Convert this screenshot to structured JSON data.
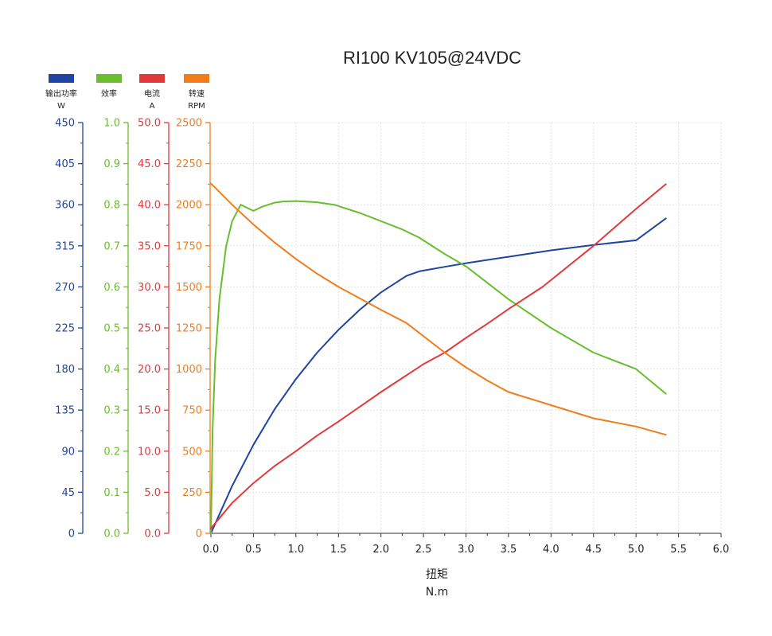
{
  "chart_data": {
    "type": "line",
    "title": "RI100 KV105@24VDC",
    "xlabel": "扭矩",
    "xunit": "N.m",
    "xlim": [
      0,
      6.0
    ],
    "xticks": [
      "0.0",
      "0.5",
      "1.0",
      "1.5",
      "2.0",
      "2.5",
      "3.0",
      "3.5",
      "4.0",
      "4.5",
      "5.0",
      "5.5",
      "6.0"
    ],
    "grid": true,
    "legend_position": "top-left",
    "series": [
      {
        "name": "输出功率",
        "unit": "W",
        "color": "#1f45a0",
        "ylim": [
          0,
          450
        ],
        "yticks": [
          "0",
          "45",
          "90",
          "135",
          "180",
          "225",
          "270",
          "315",
          "360",
          "405",
          "450"
        ],
        "x": [
          0,
          0.25,
          0.5,
          0.75,
          1.0,
          1.25,
          1.5,
          1.75,
          2.0,
          2.3,
          2.45,
          2.75,
          3.0,
          3.5,
          4.0,
          4.5,
          5.0,
          5.35
        ],
        "values": [
          0,
          52,
          97,
          136,
          169,
          198,
          223,
          245,
          264,
          282,
          287,
          292,
          296,
          303,
          310,
          316,
          321,
          345
        ]
      },
      {
        "name": "效率",
        "unit": "",
        "color": "#6abd2e",
        "ylim": [
          0,
          1.0
        ],
        "yticks": [
          "0.0",
          "0.1",
          "0.2",
          "0.3",
          "0.4",
          "0.5",
          "0.6",
          "0.7",
          "0.8",
          "0.9",
          "1.0"
        ],
        "x": [
          0,
          0.02,
          0.05,
          0.1,
          0.18,
          0.25,
          0.35,
          0.5,
          0.6,
          0.75,
          0.85,
          1.0,
          1.1,
          1.25,
          1.45,
          1.75,
          2.0,
          2.25,
          2.45,
          2.75,
          3.0,
          3.25,
          3.5,
          4.0,
          4.5,
          5.0,
          5.35
        ],
        "values": [
          0,
          0.25,
          0.42,
          0.57,
          0.7,
          0.76,
          0.8,
          0.785,
          0.795,
          0.805,
          0.808,
          0.809,
          0.808,
          0.806,
          0.8,
          0.78,
          0.76,
          0.74,
          0.72,
          0.68,
          0.65,
          0.61,
          0.57,
          0.5,
          0.44,
          0.4,
          0.34
        ]
      },
      {
        "name": "电流",
        "unit": "A",
        "color": "#e2393a",
        "ylim": [
          0,
          50
        ],
        "yticks": [
          "0.0",
          "5.0",
          "10.0",
          "15.0",
          "20.0",
          "25.0",
          "30.0",
          "35.0",
          "40.0",
          "45.0",
          "50.0"
        ],
        "x": [
          0,
          0.25,
          0.5,
          0.75,
          1.0,
          1.25,
          1.5,
          1.75,
          2.0,
          2.25,
          2.5,
          2.75,
          3.0,
          3.25,
          3.5,
          3.9,
          4.5,
          5.0,
          5.35
        ],
        "values": [
          0.6,
          3.7,
          6.1,
          8.2,
          10.0,
          11.9,
          13.6,
          15.4,
          17.2,
          18.9,
          20.6,
          22.0,
          23.8,
          25.5,
          27.3,
          30.0,
          35.0,
          39.5,
          42.5
        ]
      },
      {
        "name": "转速",
        "unit": "RPM",
        "color": "#f07d1a",
        "ylim": [
          0,
          2500
        ],
        "yticks": [
          "0",
          "250",
          "500",
          "750",
          "1000",
          "1250",
          "1500",
          "1750",
          "2000",
          "2250",
          "2500"
        ],
        "x": [
          0,
          0.25,
          0.5,
          0.75,
          1.0,
          1.25,
          1.5,
          1.75,
          2.0,
          2.3,
          2.5,
          2.75,
          3.0,
          3.25,
          3.5,
          4.0,
          4.5,
          5.0,
          5.35
        ],
        "values": [
          2130,
          2000,
          1880,
          1770,
          1670,
          1580,
          1500,
          1430,
          1360,
          1280,
          1200,
          1100,
          1010,
          930,
          860,
          780,
          700,
          650,
          600
        ]
      }
    ]
  }
}
